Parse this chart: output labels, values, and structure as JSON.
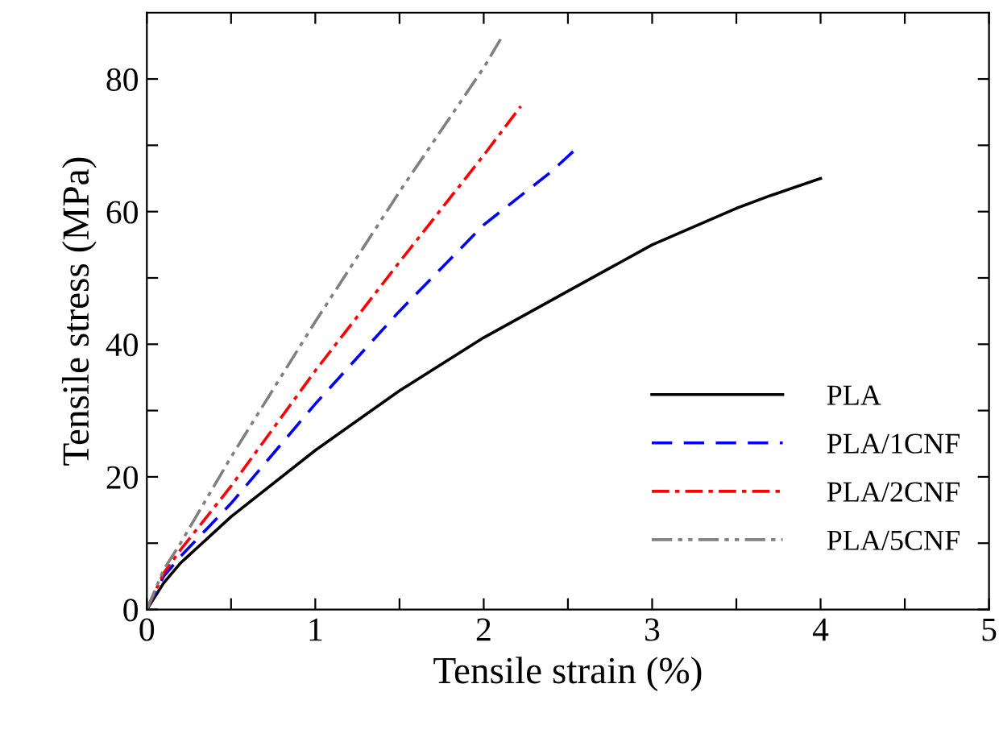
{
  "chart_data": {
    "type": "line",
    "xlabel": "Tensile strain (%)",
    "ylabel": "Tensile stress (MPa)",
    "xlim": [
      0,
      5
    ],
    "ylim": [
      0,
      90
    ],
    "xticks": [
      0,
      {
        "value": 0.5,
        "label": null
      },
      1,
      {
        "value": 1.5,
        "label": null
      },
      2,
      {
        "value": 2.5,
        "label": null
      },
      3,
      {
        "value": 3.5,
        "label": null
      },
      4,
      {
        "value": 4.5,
        "label": null
      },
      5
    ],
    "yticks": [
      0,
      {
        "value": 10,
        "label": null
      },
      20,
      {
        "value": 30,
        "label": null
      },
      40,
      {
        "value": 50,
        "label": null
      },
      60,
      {
        "value": 70,
        "label": null
      },
      80
    ],
    "grid": false,
    "legend": "bottom right",
    "series": [
      {
        "name": "PLA",
        "color": "#000000",
        "line_style": "solid",
        "x": [
          0,
          0.1,
          0.2,
          0.5,
          1,
          1.5,
          2,
          2.5,
          3,
          3.5,
          3.7,
          4
        ],
        "values": [
          0,
          4,
          7,
          14,
          24,
          33,
          41,
          48,
          55,
          60.5,
          62.4,
          65
        ]
      },
      {
        "name": "PLA/1CNF",
        "color": "#0000ff",
        "line_style": "dashed",
        "x": [
          0,
          0.1,
          0.2,
          0.5,
          1,
          1.5,
          2,
          2.4,
          2.55
        ],
        "values": [
          0,
          5,
          8,
          16,
          31,
          45,
          58,
          66,
          69.5
        ]
      },
      {
        "name": "PLA/2CNF",
        "color": "#ff0000",
        "line_style": "dashdot",
        "x": [
          0,
          0.1,
          0.2,
          0.5,
          1,
          1.5,
          2,
          2.22
        ],
        "values": [
          0,
          5.5,
          9,
          18.6,
          36,
          52.4,
          68.5,
          75.9
        ]
      },
      {
        "name": "PLA/5CNF",
        "color": "#808080",
        "line_style": "dashdotdot",
        "x": [
          0,
          0.1,
          0.2,
          0.5,
          1,
          1.5,
          2,
          2.1
        ],
        "values": [
          0,
          6,
          10,
          23,
          43.4,
          63,
          81.7,
          86
        ]
      }
    ]
  }
}
